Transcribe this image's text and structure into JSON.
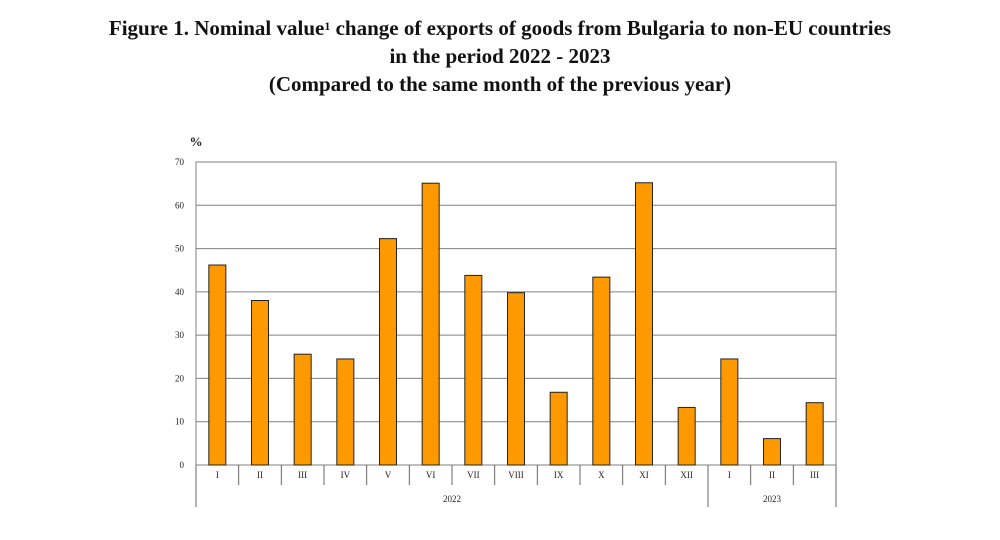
{
  "title": {
    "line1_prefix": "Figure 1. Nominal value",
    "superscript": "1",
    "line1_suffix": " change of exports of goods from Bulgaria to non-EU countries",
    "line2": "in the period 2022 - 2023",
    "line3": "(Compared to the same month of the previous year)"
  },
  "chart_data": {
    "type": "bar",
    "title": "Figure 1. Nominal value1 change of exports of goods from Bulgaria to non-EU countries in the period 2022 - 2023 (Compared to the same month of the previous year)",
    "ylabel": "%",
    "xlabel": "",
    "ylim": [
      0,
      70
    ],
    "yticks": [
      0,
      10,
      20,
      30,
      40,
      50,
      60,
      70
    ],
    "grid": true,
    "bar_color": "#FF9900",
    "bar_edge_color": "#222222",
    "categories": [
      "I",
      "II",
      "III",
      "IV",
      "V",
      "VI",
      "VII",
      "VIII",
      "IX",
      "X",
      "XI",
      "XII",
      "I",
      "II",
      "III"
    ],
    "groups": [
      {
        "label": "2022",
        "count": 12
      },
      {
        "label": "2023",
        "count": 3
      }
    ],
    "values": [
      46.2,
      38.0,
      25.6,
      24.5,
      52.3,
      65.1,
      43.8,
      39.8,
      16.8,
      43.4,
      65.2,
      13.3,
      24.5,
      6.1,
      14.4
    ]
  }
}
